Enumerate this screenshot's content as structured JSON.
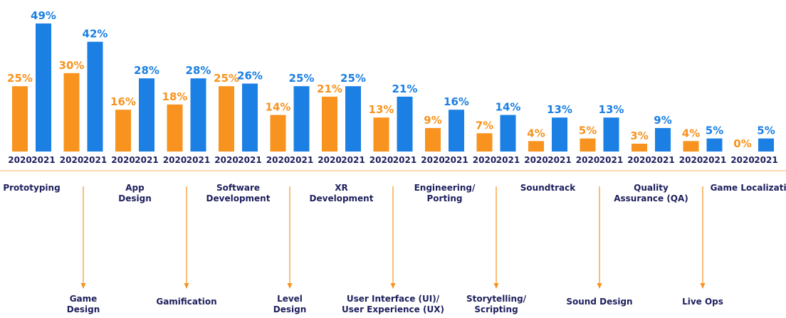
{
  "chart_data": {
    "type": "bar",
    "categories": [
      [
        "Prototyping"
      ],
      [
        "Game",
        "Design"
      ],
      [
        "App",
        "Design"
      ],
      [
        "Gamification"
      ],
      [
        "Software",
        "Development"
      ],
      [
        "Level",
        "Design"
      ],
      [
        "XR",
        "Development"
      ],
      [
        "User Interface (UI)/",
        "User Experience (UX)"
      ],
      [
        "Engineering/",
        "Porting"
      ],
      [
        "Storytelling/",
        "Scripting"
      ],
      [
        "Soundtrack"
      ],
      [
        "Sound Design"
      ],
      [
        "Quality",
        "Assurance (QA)"
      ],
      [
        "Live Ops"
      ],
      [
        "Game Localization"
      ]
    ],
    "series": [
      {
        "name": "2020",
        "color": "#f7931e",
        "values": [
          25,
          30,
          16,
          18,
          25,
          14,
          21,
          13,
          9,
          7,
          4,
          5,
          3,
          4,
          0
        ],
        "value_labels": [
          "25%",
          "30%",
          "16%",
          "18%",
          "25%",
          "14%",
          "21%",
          "13%",
          "9%",
          "7%",
          "4%",
          "5%",
          "3%",
          "4%",
          "0%"
        ]
      },
      {
        "name": "2021",
        "color": "#1b7fe3",
        "values": [
          49,
          42,
          28,
          28,
          26,
          25,
          25,
          21,
          16,
          14,
          13,
          13,
          9,
          5,
          5
        ],
        "value_labels": [
          "49%",
          "42%",
          "28%",
          "28%",
          "26%",
          "25%",
          "25%",
          "21%",
          "16%",
          "14%",
          "13%",
          "13%",
          "9%",
          "5%",
          "5%"
        ]
      }
    ]
  }
}
